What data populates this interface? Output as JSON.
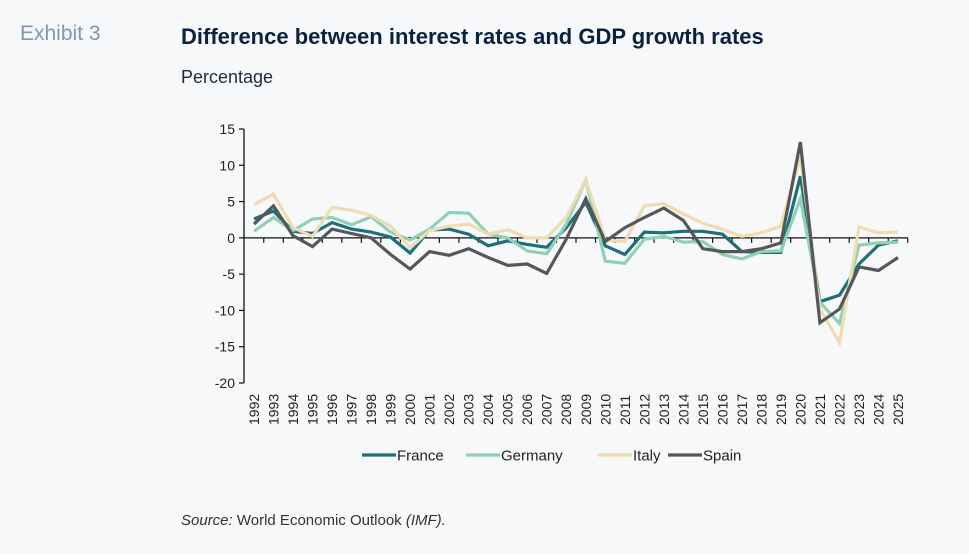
{
  "header": {
    "exhibit": "Exhibit 3",
    "title": "Difference between interest rates and GDP growth rates",
    "subtitle": "Percentage"
  },
  "footer": {
    "source_label": "Source:",
    "source_text": " World Economic Outlook ",
    "source_org": "(IMF)."
  },
  "chart_data": {
    "type": "line",
    "title": "Difference between interest rates and GDP growth rates",
    "ylabel": "Percentage",
    "xlabel": "",
    "ylim": [
      -20,
      15
    ],
    "yticks": [
      15,
      10,
      5,
      0,
      -5,
      -10,
      -15,
      -20
    ],
    "grid": false,
    "legend_position": "bottom",
    "x": [
      "1992",
      "1993",
      "1994",
      "1995",
      "1996",
      "1997",
      "1998",
      "1999",
      "2000",
      "2001",
      "2002",
      "2003",
      "2004",
      "2005",
      "2006",
      "2007",
      "2008",
      "2009",
      "2010",
      "2011",
      "2012",
      "2013",
      "2014",
      "2015",
      "2016",
      "2017",
      "2018",
      "2019",
      "2020",
      "2021",
      "2022",
      "2023",
      "2024",
      "2025"
    ],
    "series": [
      {
        "name": "France",
        "color": "#1e6f7a",
        "values": [
          2.6,
          3.7,
          0.9,
          0.6,
          2.1,
          1.2,
          0.8,
          0.1,
          -2.1,
          1.1,
          1.2,
          0.5,
          -1.1,
          -0.4,
          -0.9,
          -1.3,
          1.4,
          4.9,
          -1.1,
          -2.3,
          0.8,
          0.7,
          0.9,
          0.9,
          0.5,
          -1.9,
          -2.0,
          -2.0,
          8.5,
          -8.8,
          -7.9,
          -3.6,
          -1.0,
          -0.4
        ]
      },
      {
        "name": "Germany",
        "color": "#8fd1b2",
        "values": [
          0.9,
          2.8,
          1.0,
          2.6,
          2.8,
          1.8,
          2.9,
          0.8,
          -0.3,
          1.2,
          3.5,
          3.4,
          0.5,
          0.0,
          -1.8,
          -2.2,
          1.9,
          8.0,
          -3.2,
          -3.5,
          -0.2,
          0.2,
          -0.6,
          -0.5,
          -2.3,
          -2.9,
          -1.9,
          -1.8,
          5.4,
          -8.9,
          -11.8,
          -1.0,
          -0.7,
          -0.6
        ]
      },
      {
        "name": "Italy",
        "color": "#eedcb2",
        "values": [
          4.6,
          6.0,
          1.4,
          0.2,
          4.2,
          3.8,
          3.1,
          1.6,
          -1.4,
          1.0,
          1.6,
          1.9,
          0.5,
          1.1,
          0.0,
          0.0,
          2.8,
          8.0,
          -0.3,
          -0.5,
          4.4,
          4.7,
          3.3,
          2.0,
          1.2,
          0.2,
          0.7,
          1.6,
          11.2,
          -9.8,
          -14.4,
          1.5,
          0.7,
          0.8
        ]
      },
      {
        "name": "Spain",
        "color": "#555759",
        "values": [
          1.9,
          4.4,
          0.3,
          -1.2,
          1.2,
          0.6,
          0.0,
          -2.3,
          -4.3,
          -1.9,
          -2.4,
          -1.5,
          -2.7,
          -3.8,
          -3.6,
          -4.9,
          -0.2,
          5.4,
          -0.5,
          1.4,
          2.8,
          4.1,
          2.4,
          -1.5,
          -1.9,
          -1.9,
          -1.5,
          -0.7,
          13.2,
          -11.7,
          -9.8,
          -4.0,
          -4.5,
          -2.7
        ]
      }
    ]
  }
}
